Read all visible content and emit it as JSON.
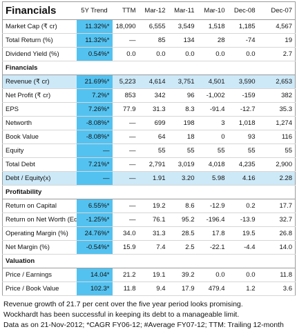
{
  "header": {
    "title": "Financials",
    "columns": [
      "5Y Trend",
      "TTM",
      "Mar-12",
      "Mar-11",
      "Mar-10",
      "Dec-08",
      "Dec-07"
    ]
  },
  "top_rows": [
    {
      "label": "Market Cap (₹ cr)",
      "trend": "11.32%*",
      "values": [
        "18,090",
        "6,555",
        "3,549",
        "1,518",
        "1,185",
        "4,567"
      ]
    },
    {
      "label": "Total Return (%)",
      "trend": "11.32%*",
      "values": [
        "—",
        "85",
        "134",
        "28",
        "-74",
        "19"
      ]
    },
    {
      "label": "Dividend Yield (%)",
      "trend": "0.54%*",
      "values": [
        "0.0",
        "0.0",
        "0.0",
        "0.0",
        "0.0",
        "2.7"
      ]
    }
  ],
  "sections": [
    {
      "title": "Financials",
      "rows": [
        {
          "label": "Revenue (₹ cr)",
          "trend": "21.69%*",
          "values": [
            "5,223",
            "4,614",
            "3,751",
            "4,501",
            "3,590",
            "2,653"
          ],
          "highlight": true
        },
        {
          "label": "Net Profit (₹ cr)",
          "trend": "7.2%*",
          "values": [
            "853",
            "342",
            "96",
            "-1,002",
            "-159",
            "382"
          ]
        },
        {
          "label": "EPS",
          "trend": "7.26%*",
          "values": [
            "77.9",
            "31.3",
            "8.3",
            "-91.4",
            "-12.7",
            "35.3"
          ]
        },
        {
          "label": "Networth",
          "trend": "-8.08%*",
          "values": [
            "—",
            "699",
            "198",
            "3",
            "1,018",
            "1,274"
          ]
        },
        {
          "label": "Book Value",
          "trend": "-8.08%*",
          "values": [
            "—",
            "64",
            "18",
            "0",
            "93",
            "116"
          ]
        },
        {
          "label": "Equity",
          "trend": "—",
          "values": [
            "—",
            "55",
            "55",
            "55",
            "55",
            "55"
          ]
        },
        {
          "label": "Total Debt",
          "trend": "7.21%*",
          "values": [
            "—",
            "2,791",
            "3,019",
            "4,018",
            "4,235",
            "2,900"
          ]
        },
        {
          "label": "Debt / Equity(x)",
          "trend": "—",
          "values": [
            "—",
            "1.91",
            "3.20",
            "5.98",
            "4.16",
            "2.28"
          ],
          "highlight": true
        }
      ]
    },
    {
      "title": "Profitability",
      "rows": [
        {
          "label": "Return on Capital",
          "trend": "6.55%*",
          "values": [
            "—",
            "19.2",
            "8.6",
            "-12.9",
            "0.2",
            "17.7"
          ]
        },
        {
          "label": "Return on Net Worth (Equity)",
          "trend": "-1.25%*",
          "values": [
            "—",
            "76.1",
            "95.2",
            "-196.4",
            "-13.9",
            "32.7"
          ]
        },
        {
          "label": "Operating Margin (%)",
          "trend": "24.76%*",
          "values": [
            "34.0",
            "31.3",
            "28.5",
            "17.8",
            "19.5",
            "26.8"
          ]
        },
        {
          "label": "Net Margin (%)",
          "trend": "-0.54%*",
          "values": [
            "15.9",
            "7.4",
            "2.5",
            "-22.1",
            "-4.4",
            "14.0"
          ]
        }
      ]
    },
    {
      "title": "Valuation",
      "rows": [
        {
          "label": "Price / Earnings",
          "trend": "14.04*",
          "values": [
            "21.2",
            "19.1",
            "39.2",
            "0.0",
            "0.0",
            "11.8"
          ]
        },
        {
          "label": "Price / Book Value",
          "trend": "102.3*",
          "values": [
            "11.8",
            "9.4",
            "17.9",
            "479.4",
            "1.2",
            "3.6"
          ]
        }
      ]
    }
  ],
  "footer": {
    "lines": [
      "Revenue growth of 21.7 per cent over the five year period looks promising.",
      "Wockhardt has been successful in keeping its debt to a manageable limit.",
      "Data as on 21-Nov-2012;  *CAGR FY06-12;  #Average FY07-12;  TTM: Trailing 12-month"
    ]
  }
}
